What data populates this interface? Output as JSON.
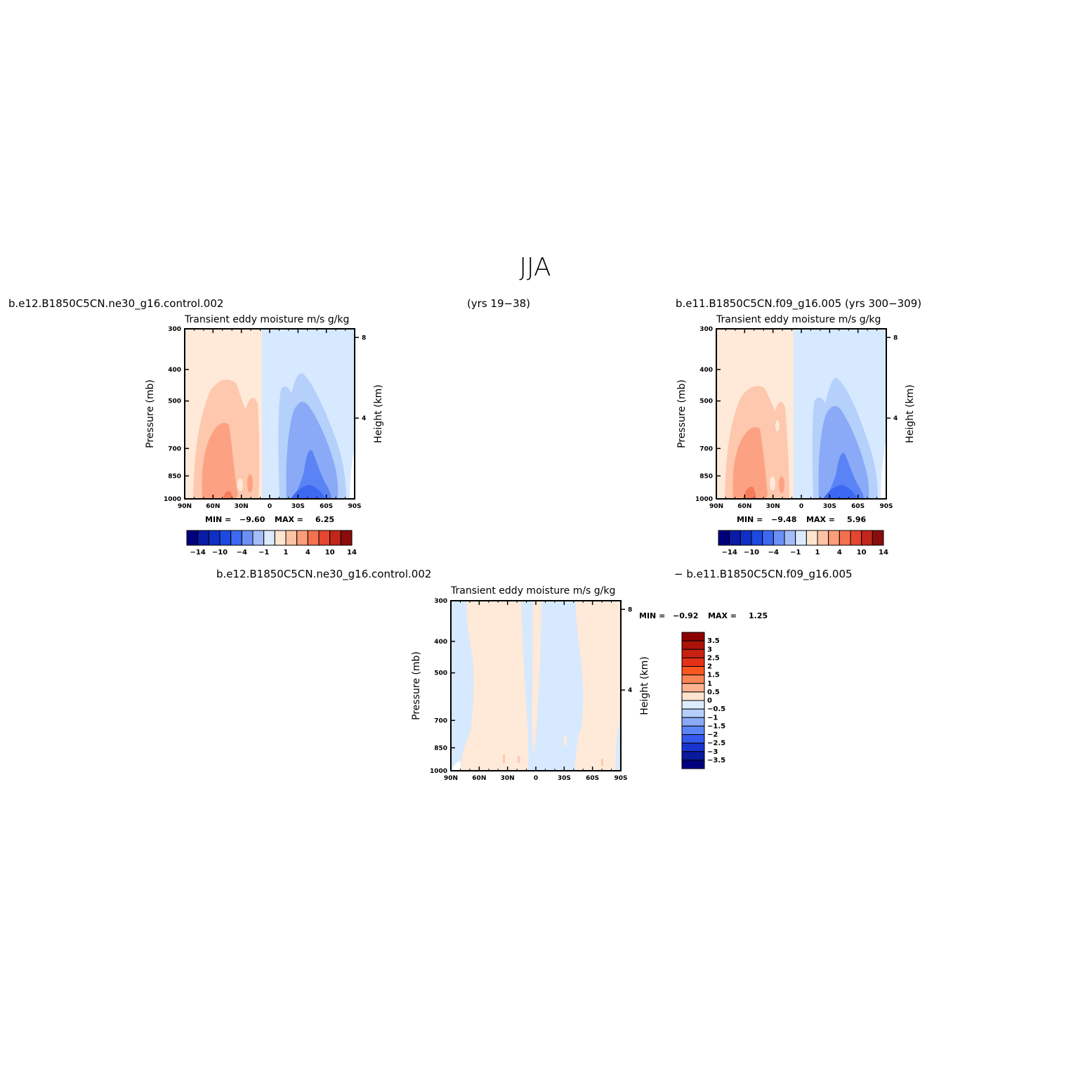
{
  "figure": {
    "title": "JJA",
    "left_model": "b.e12.B1850C5CN.ne30_g16.control.002",
    "center_years": "(yrs 19−38)",
    "right_model": "b.e11.B1850C5CN.f09_g16.005 (yrs 300−309)",
    "bottom_left_model": "b.e12.B1850C5CN.ne30_g16.control.002",
    "bottom_right_model": "− b.e11.B1850C5CN.f09_g16.005"
  },
  "colors": {
    "positive_1": "#ffe9d8",
    "positive_2": "#fdc8ad",
    "positive_3": "#fca283",
    "positive_4": "#f57c5a",
    "negative_1": "#d6e9ff",
    "negative_2": "#b4d0fb",
    "negative_3": "#8aaaf7",
    "negative_4": "#5a84f5",
    "negative_5": "#3d68f2",
    "frame": "#000000"
  },
  "chart_data": [
    {
      "type": "heatmap",
      "title": "Transient eddy moisture m/s g/kg",
      "xlabel": "",
      "ylabel": "Pressure (mb)",
      "y2label": "Height (km)",
      "x_ticks": [
        "90N",
        "60N",
        "30N",
        "0",
        "30S",
        "60S",
        "90S"
      ],
      "x_range": [
        90,
        -90
      ],
      "y_ticks": [
        300,
        400,
        500,
        700,
        850,
        1000
      ],
      "y_scale": "log",
      "y_range": [
        300,
        1000
      ],
      "y2_ticks": [
        8,
        4
      ],
      "min_label": "MIN =",
      "min_value": "−9.60",
      "max_label": "MAX =",
      "max_value": "6.25",
      "levels": [
        -14,
        -12,
        -10,
        -7,
        -4,
        -2,
        -1,
        0,
        1,
        2,
        4,
        7,
        10,
        12,
        14
      ],
      "colorbar_labels": [
        "−14",
        "−10",
        "−4",
        "−1",
        "1",
        "4",
        "10",
        "14"
      ]
    },
    {
      "type": "heatmap",
      "title": "Transient eddy moisture m/s g/kg",
      "xlabel": "",
      "ylabel": "Pressure (mb)",
      "y2label": "Height (km)",
      "x_ticks": [
        "90N",
        "60N",
        "30N",
        "0",
        "30S",
        "60S",
        "90S"
      ],
      "x_range": [
        90,
        -90
      ],
      "y_ticks": [
        300,
        400,
        500,
        700,
        850,
        1000
      ],
      "y_scale": "log",
      "y_range": [
        300,
        1000
      ],
      "y2_ticks": [
        8,
        4
      ],
      "min_label": "MIN =",
      "min_value": "−9.48",
      "max_label": "MAX =",
      "max_value": "5.96",
      "levels": [
        -14,
        -12,
        -10,
        -7,
        -4,
        -2,
        -1,
        0,
        1,
        2,
        4,
        7,
        10,
        12,
        14
      ],
      "colorbar_labels": [
        "−14",
        "−10",
        "−4",
        "−1",
        "1",
        "4",
        "10",
        "14"
      ]
    },
    {
      "type": "heatmap",
      "title": "Transient eddy moisture m/s g/kg",
      "xlabel": "",
      "ylabel": "Pressure (mb)",
      "y2label": "Height (km)",
      "x_ticks": [
        "90N",
        "60N",
        "30N",
        "0",
        "30S",
        "60S",
        "90S"
      ],
      "x_range": [
        90,
        -90
      ],
      "y_ticks": [
        300,
        400,
        500,
        700,
        850,
        1000
      ],
      "y_scale": "log",
      "y_range": [
        300,
        1000
      ],
      "y2_ticks": [
        8,
        4
      ],
      "min_label": "MIN =",
      "min_value": "−0.92",
      "max_label": "MAX =",
      "max_value": "1.25",
      "levels": [
        -3.5,
        -3,
        -2.5,
        -2,
        -1.5,
        -1,
        -0.5,
        0,
        0.5,
        1,
        1.5,
        2,
        2.5,
        3,
        3.5
      ],
      "colorbar_labels": [
        "3.5",
        "3",
        "2.5",
        "2",
        "1.5",
        "1",
        "0.5",
        "0",
        "−0.5",
        "−1",
        "−1.5",
        "−2",
        "−2.5",
        "−3",
        "−3.5"
      ]
    }
  ]
}
